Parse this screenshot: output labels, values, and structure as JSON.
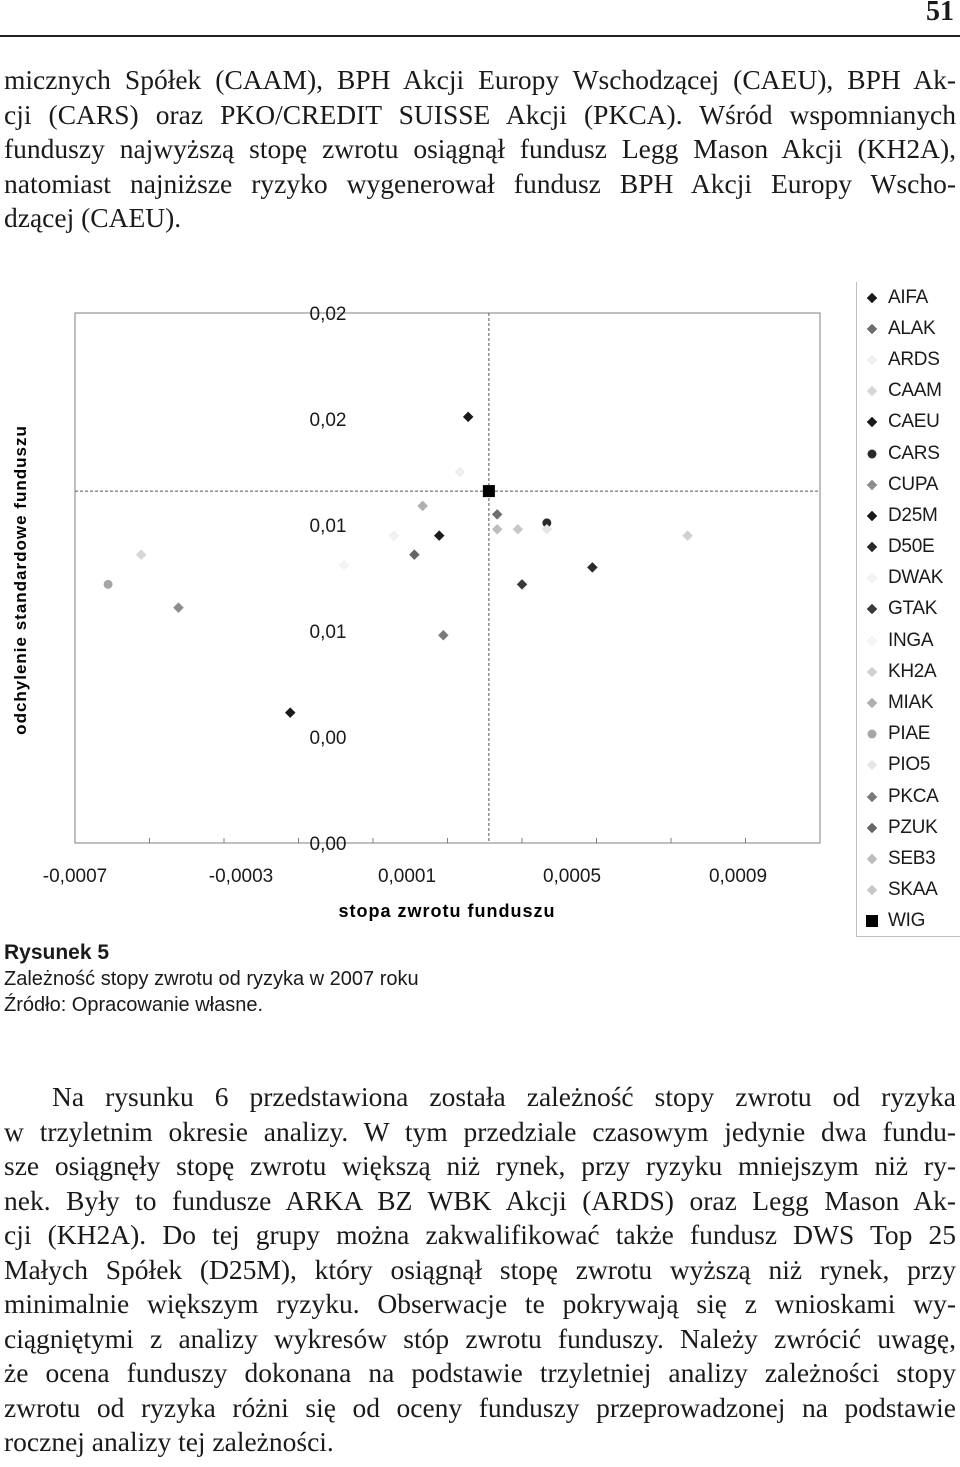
{
  "page_number": "51",
  "intro_paragraph": {
    "lines": [
      "micznych Spółek (CAAM), BPH Akcji Europy Wschodzącej (CAEU), BPH Ak-",
      "cji (CARS) oraz PKO/CREDIT SUISSE Akcji (PKCA). Wśród wspomnianych",
      "funduszy najwyższą stopę zwrotu osiągnął fundusz Legg Mason Akcji (KH2A),",
      "natomiast najniższe ryzyko wygenerował fundusz BPH Akcji Europy Wscho-",
      "dzącej (CAEU)."
    ]
  },
  "figure": {
    "label": "Rysunek 5",
    "caption": "Zależność stopy zwrotu od ryzyka w 2007 roku",
    "source": "Źródło: Opracowanie własne."
  },
  "chart_data": {
    "type": "scatter",
    "xlabel": "stopa zwrotu funduszu",
    "ylabel": "odchylenie standardowe funduszu",
    "x_ticks": [
      "-0,0007",
      "-0,0003",
      "0,0001",
      "0,0005",
      "0,0009"
    ],
    "y_ticks": [
      "0,02",
      "0,02",
      "0,01",
      "0,01",
      "0,00",
      "0,00"
    ],
    "xlim": [
      -0.0007,
      0.0011
    ],
    "ylim": [
      0.0,
      0.025
    ],
    "reference_lines": {
      "x": 0.0003,
      "y": 0.0166
    },
    "grid": false,
    "legend_position": "right",
    "series": [
      {
        "name": "AIFA",
        "marker": "diamond",
        "color": "#1a1a1a",
        "x": 0.00018,
        "y": 0.0145
      },
      {
        "name": "ALAK",
        "marker": "diamond",
        "color": "#6e6e6e",
        "x": 0.00032,
        "y": 0.0155
      },
      {
        "name": "ARDS",
        "marker": "diamond",
        "color": "#f0f0f0",
        "x": 0.00023,
        "y": 0.0175
      },
      {
        "name": "CAAM",
        "marker": "diamond",
        "color": "#d6d6d6",
        "x": -0.00054,
        "y": 0.0136
      },
      {
        "name": "CAEU",
        "marker": "diamond",
        "color": "#1a1a1a",
        "x": -0.00018,
        "y": 0.00615
      },
      {
        "name": "CARS",
        "marker": "circle",
        "color": "#2a2a2a",
        "x": 0.00044,
        "y": 0.0151
      },
      {
        "name": "CUPA",
        "marker": "diamond",
        "color": "#8c8c8c",
        "x": -0.00045,
        "y": 0.0111
      },
      {
        "name": "D25M",
        "marker": "diamond",
        "color": "#1a1a1a",
        "x": 0.00025,
        "y": 0.0201
      },
      {
        "name": "D50E",
        "marker": "diamond",
        "color": "#2a2a2a",
        "x": 0.00055,
        "y": 0.013
      },
      {
        "name": "DWAK",
        "marker": "diamond",
        "color": "#f2f2f2",
        "x": 7e-05,
        "y": 0.0145
      },
      {
        "name": "GTAK",
        "marker": "diamond",
        "color": "#3a3a3a",
        "x": 0.00038,
        "y": 0.0122
      },
      {
        "name": "INGA",
        "marker": "diamond",
        "color": "#f4f4f4",
        "x": -5e-05,
        "y": 0.0131
      },
      {
        "name": "KH2A",
        "marker": "diamond",
        "color": "#d0d0d0",
        "x": 0.00078,
        "y": 0.0145
      },
      {
        "name": "MIAK",
        "marker": "diamond",
        "color": "#b0b0b0",
        "x": 0.00014,
        "y": 0.0159
      },
      {
        "name": "PIAE",
        "marker": "circle",
        "color": "#a6a6a6",
        "x": -0.00062,
        "y": 0.0122
      },
      {
        "name": "PIO5",
        "marker": "diamond",
        "color": "#e6e6e6",
        "x": 0.00044,
        "y": 0.0148
      },
      {
        "name": "PKCA",
        "marker": "diamond",
        "color": "#7a7a7a",
        "x": 0.00019,
        "y": 0.0098
      },
      {
        "name": "PZUK",
        "marker": "diamond",
        "color": "#666666",
        "x": 0.00012,
        "y": 0.0136
      },
      {
        "name": "SEB3",
        "marker": "diamond",
        "color": "#bdbdbd",
        "x": 0.00032,
        "y": 0.0148
      },
      {
        "name": "SKAA",
        "marker": "diamond",
        "color": "#c8c8c8",
        "x": 0.00037,
        "y": 0.0148
      },
      {
        "name": "WIG",
        "marker": "square",
        "color": "#000000",
        "x": 0.0003,
        "y": 0.0166
      }
    ]
  },
  "body_paragraph": {
    "lines": [
      "Na rysunku 6 przedstawiona została zależność stopy zwrotu od ryzyka",
      "w trzyletnim okresie analizy. W tym przedziale czasowym jedynie dwa fundu-",
      "sze osiągnęły stopę zwrotu większą niż rynek, przy ryzyku mniejszym niż ry-",
      "nek. Były to fundusze ARKA BZ WBK Akcji (ARDS) oraz Legg Mason Ak-",
      "cji (KH2A). Do tej grupy można zakwalifikować także fundusz DWS Top 25",
      "Małych Spółek (D25M), który osiągnął stopę zwrotu wyższą niż rynek, przy",
      "minimalnie większym ryzyku. Obserwacje te pokrywają się z wnioskami wy-",
      "ciągniętymi z analizy wykresów stóp zwrotu funduszy. Należy zwrócić uwagę,",
      "że ocena funduszy dokonana na podstawie trzyletniej analizy zależności stopy",
      "zwrotu od ryzyka różni się od oceny funduszy przeprowadzonej na podstawie",
      "rocznej analizy tej zależności."
    ]
  }
}
